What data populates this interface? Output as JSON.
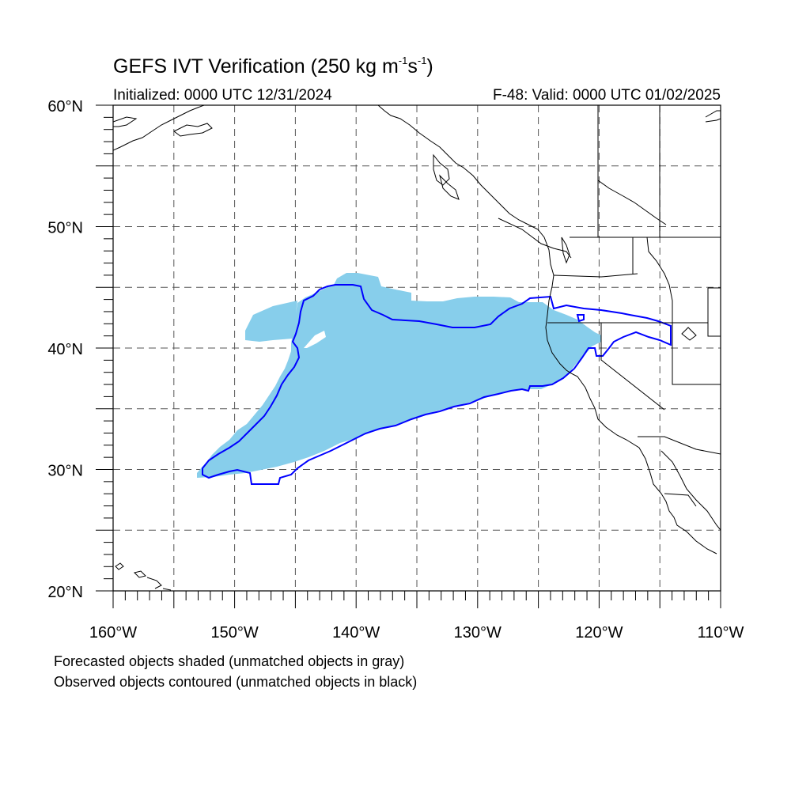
{
  "title": {
    "main": "GEFS IVT Verification (250 kg m",
    "sup1": "-1",
    "mid": "s",
    "sup2": "-1",
    "end": ")"
  },
  "initialized": "Initialized: 0000 UTC 12/31/2024",
  "valid": "F-48: Valid: 0000 UTC 01/02/2025",
  "notes": {
    "forecast": "Forecasted objects shaded (unmatched objects in gray)",
    "observed": "Observed objects contoured (unmatched objects in black)"
  },
  "map": {
    "lon_range": [
      -160,
      -110
    ],
    "lat_range": [
      20,
      60
    ],
    "x_ticks": [
      {
        "lon": -160,
        "label": "160°W"
      },
      {
        "lon": -150,
        "label": "150°W"
      },
      {
        "lon": -140,
        "label": "140°W"
      },
      {
        "lon": -130,
        "label": "130°W"
      },
      {
        "lon": -120,
        "label": "120°W"
      },
      {
        "lon": -110,
        "label": "110°W"
      }
    ],
    "y_ticks": [
      {
        "lat": 20,
        "label": "20°N"
      },
      {
        "lat": 30,
        "label": "30°N"
      },
      {
        "lat": 40,
        "label": "40°N"
      },
      {
        "lat": 50,
        "label": "50°N"
      },
      {
        "lat": 60,
        "label": "60°N"
      }
    ],
    "grid_spacing_deg": 5,
    "grid_style": "dashed",
    "colors": {
      "forecast_fill": "#87ceeb",
      "observed_contour": "#0000ff",
      "coastline": "#000000"
    }
  }
}
